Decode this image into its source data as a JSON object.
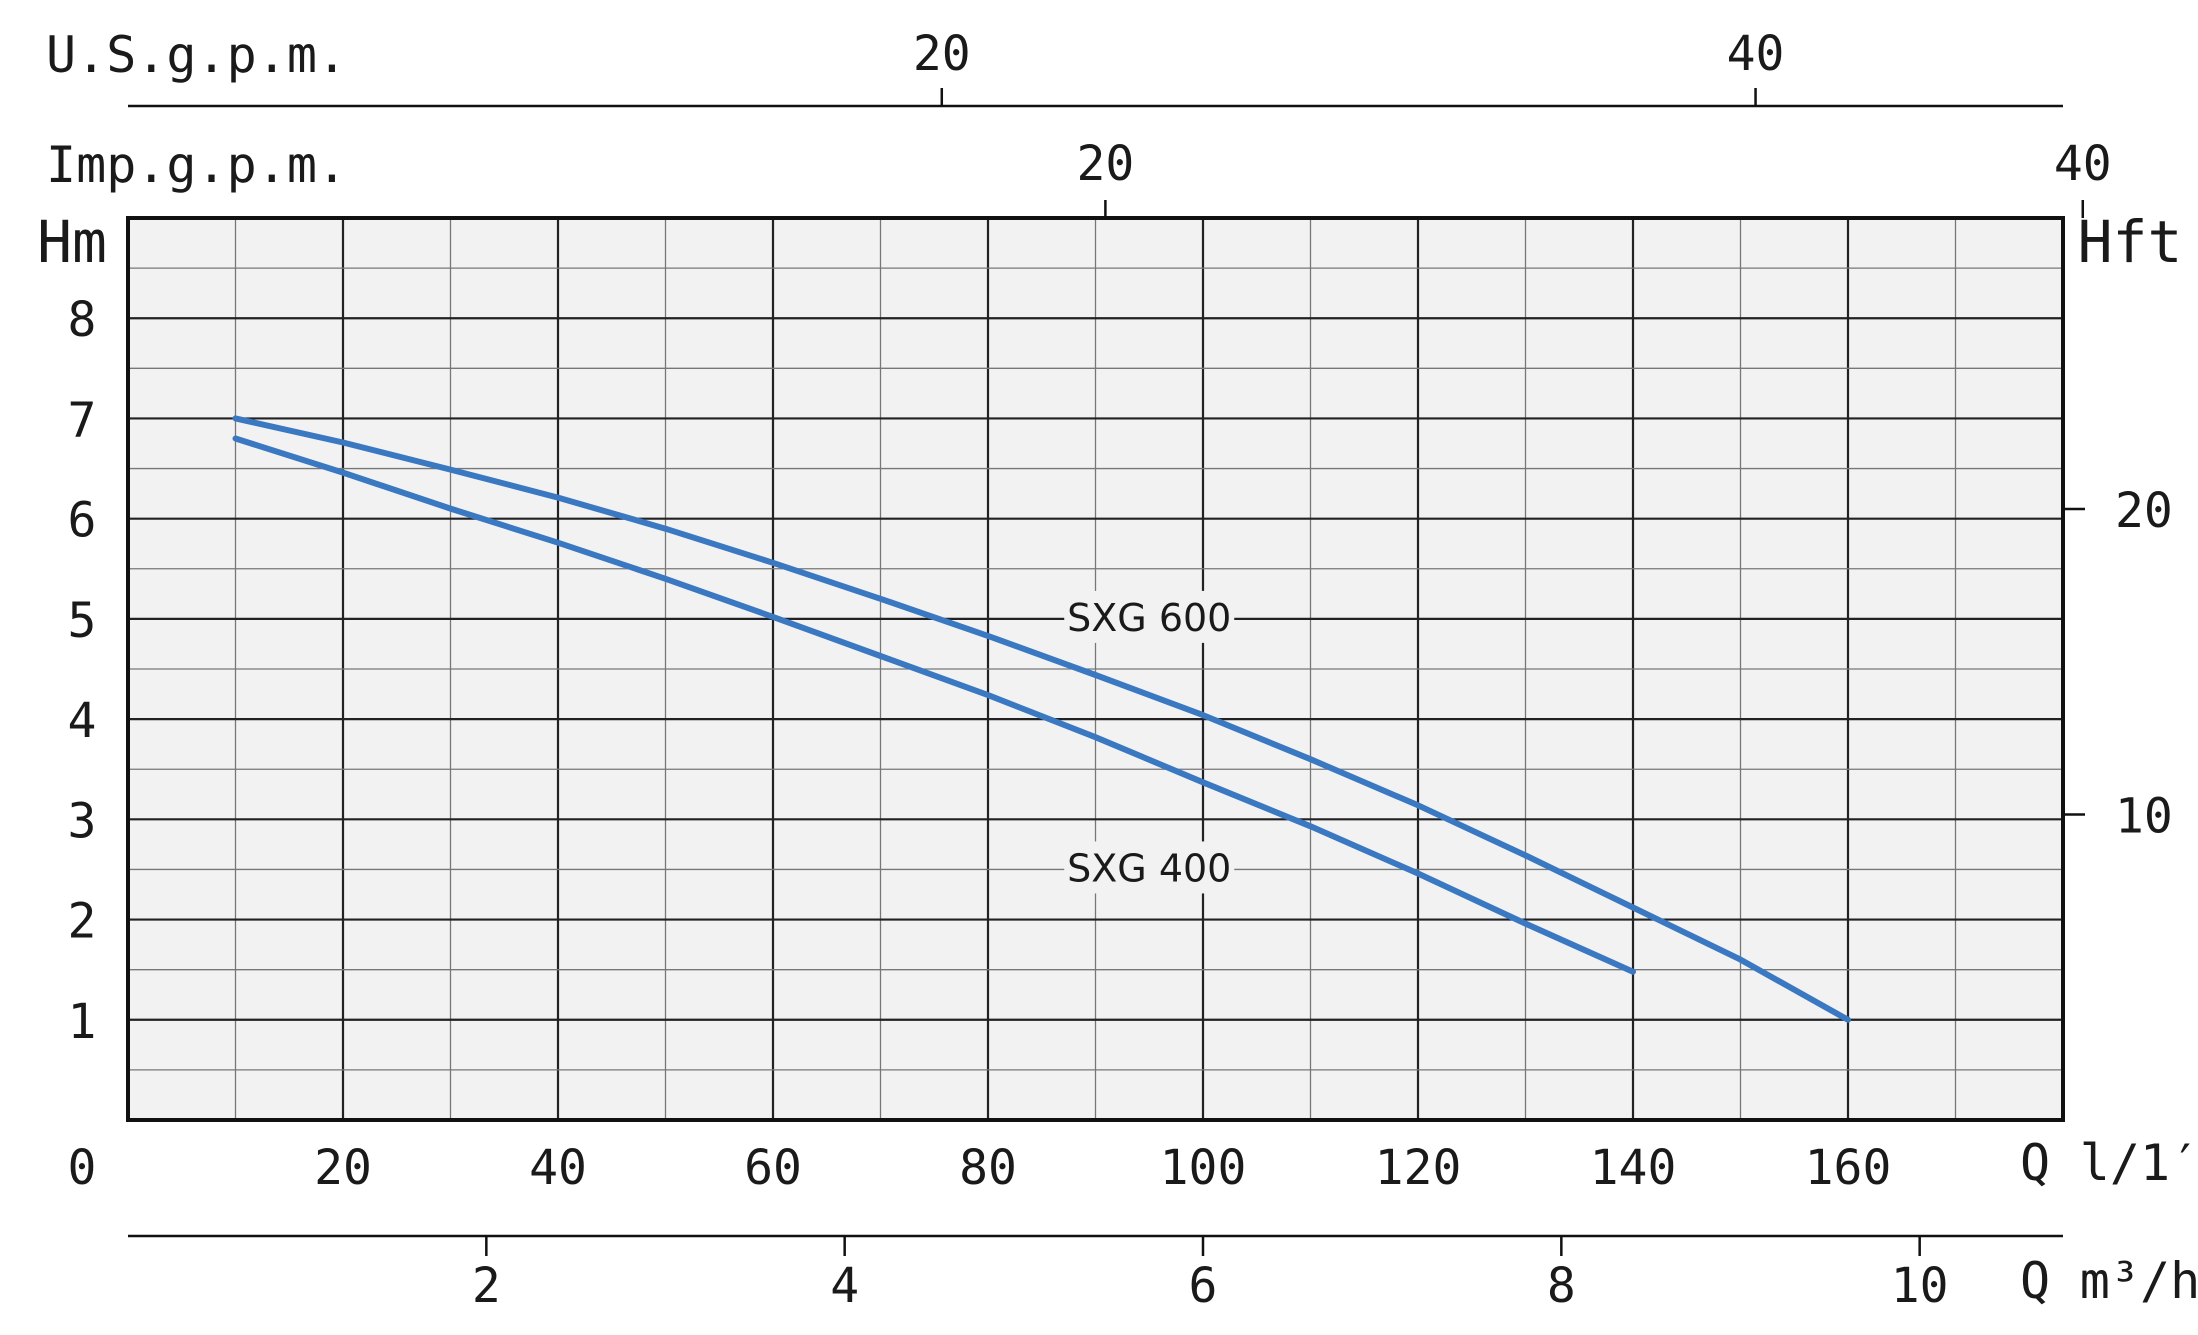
{
  "chart_data": {
    "type": "line",
    "title": "",
    "axes": {
      "flow_lpm": {
        "unit_q": "Q",
        "unit": "l/1′",
        "origin_label": "0",
        "ticks": [
          20,
          40,
          60,
          80,
          100,
          120,
          140,
          160
        ],
        "range": [
          0,
          180
        ]
      },
      "flow_m3h": {
        "unit_q": "Q",
        "unit": "m³/h",
        "ticks": [
          2,
          4,
          6,
          8,
          10
        ]
      },
      "flow_us_gpm": {
        "unit": "U.S.g.p.m.",
        "ticks": [
          20,
          40
        ]
      },
      "flow_imp_gpm": {
        "unit": "Imp.g.p.m.",
        "ticks": [
          20,
          40
        ]
      },
      "head_m": {
        "unit": "Hm",
        "ticks": [
          1,
          2,
          3,
          4,
          5,
          6,
          7,
          8
        ],
        "range": [
          0,
          9
        ]
      },
      "head_ft": {
        "unit": "Hft",
        "ticks": [
          10,
          20
        ]
      }
    },
    "grid": true,
    "series": [
      {
        "name": "SXG 600",
        "color": "#3a78c2",
        "x": [
          10,
          20,
          30,
          40,
          50,
          60,
          70,
          80,
          90,
          100,
          110,
          120,
          130,
          140,
          150,
          160
        ],
        "y": [
          7.0,
          6.76,
          6.49,
          6.21,
          5.9,
          5.56,
          5.2,
          4.83,
          4.44,
          4.04,
          3.6,
          3.14,
          2.64,
          2.12,
          1.6,
          1.0
        ]
      },
      {
        "name": "SXG 400",
        "color": "#3a78c2",
        "x": [
          10,
          20,
          30,
          40,
          50,
          60,
          70,
          80,
          90,
          100,
          110,
          120,
          130,
          140
        ],
        "y": [
          6.8,
          6.46,
          6.1,
          5.76,
          5.4,
          5.02,
          4.63,
          4.24,
          3.82,
          3.37,
          2.93,
          2.46,
          1.96,
          1.48
        ]
      }
    ]
  }
}
